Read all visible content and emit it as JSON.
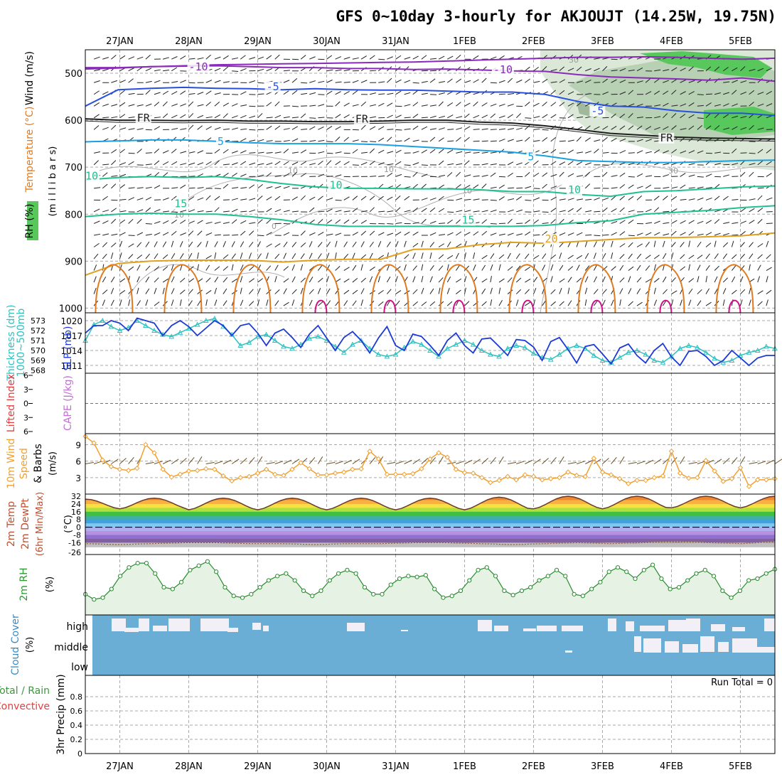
{
  "chart_data": {
    "type": "line",
    "title": "GFS 0~10day 3-hourly for AKJOUJT (14.25W, 19.75N)",
    "dates": [
      "27JAN",
      "28JAN",
      "29JAN",
      "30JAN",
      "31JAN",
      "1FEB",
      "2FEB",
      "3FEB",
      "4FEB",
      "5FEB"
    ],
    "x_hours": [
      0,
      240
    ],
    "colors": {
      "purple": "#8a2ab8",
      "blue": "#2850e0",
      "cyan": "#1aa0e0",
      "teal": "#20c090",
      "orange": "#e0a020",
      "darkorange": "#e07a20",
      "magenta": "#d0108a",
      "rhgreen": "#3ec04a",
      "cloud": "#6aaed6",
      "windorange": "#f0a030",
      "slp": "#1c3ad6",
      "thick": "#30c0c0"
    },
    "panels": {
      "upper": {
        "ylabel_wind": "Wind (m/s)",
        "ylabel_temp": "Temperature (°C)",
        "ylabel_rh": "RH (%)",
        "ylabel_units": "(m i l l i b a r s)",
        "yticks": [
          500,
          600,
          700,
          800,
          900,
          1000
        ],
        "ylim": [
          450,
          1010
        ],
        "contours": [
          {
            "label": "-10",
            "color": "#8a2ab8",
            "levels": [
              488,
              488,
              486,
              484,
              482,
              481,
              480,
              479,
              478,
              477,
              476,
              474,
              472,
              470,
              468,
              466,
              466,
              465,
              466,
              468,
              470,
              468
            ]
          },
          {
            "label": "-10b",
            "color": "#8a2ab8",
            "levels": [
              491,
              489,
              486,
              485,
              484,
              486,
              488,
              488,
              490,
              490,
              492,
              491,
              493,
              495,
              496,
              503,
              508,
              510,
              512,
              515,
              510,
              517
            ]
          },
          {
            "label": "-5",
            "color": "#2850e0",
            "levels": [
              570,
              535,
              532,
              530,
              532,
              533,
              535,
              533,
              535,
              536,
              536,
              538,
              540,
              540,
              545,
              560,
              570,
              572,
              580,
              585,
              585,
              590
            ]
          },
          {
            "label": "FR",
            "color": "#202020",
            "levels": [
              597,
              600,
              600,
              601,
              600,
              602,
              602,
              603,
              603,
              602,
              600,
              600,
              604,
              606,
              612,
              620,
              628,
              632,
              636,
              638,
              639,
              640
            ]
          },
          {
            "label": "5",
            "color": "#1aa0e0",
            "levels": [
              646,
              644,
              642,
              642,
              645,
              648,
              650,
              650,
              650,
              652,
              656,
              660,
              664,
              668,
              676,
              686,
              688,
              690,
              690,
              688,
              686,
              685
            ]
          },
          {
            "label": "10",
            "color": "#20c090",
            "levels": [
              727,
              722,
              720,
              722,
              720,
              726,
              735,
              742,
              745,
              745,
              746,
              746,
              748,
              752,
              752,
              758,
              762,
              752,
              750,
              746,
              742,
              740
            ]
          },
          {
            "label": "15",
            "color": "#20c090",
            "levels": [
              805,
              800,
              798,
              800,
              800,
              805,
              812,
              822,
              826,
              826,
              826,
              826,
              826,
              826,
              824,
              818,
              814,
              800,
              796,
              792,
              786,
              782
            ]
          },
          {
            "label": "20",
            "color": "#e0a020",
            "levels": [
              930,
              905,
              900,
              898,
              898,
              898,
              902,
              898,
              896,
              896,
              875,
              874,
              865,
              860,
              862,
              858,
              854,
              850,
              850,
              848,
              846,
              840
            ]
          }
        ],
        "labels": [
          {
            "text": "-10",
            "color": "#8a2ab8",
            "hour": 36,
            "p": 494
          },
          {
            "text": "-10",
            "color": "#8a2ab8",
            "hour": 142,
            "p": 500
          },
          {
            "text": "-5",
            "color": "#2850e0",
            "hour": 63,
            "p": 536
          },
          {
            "text": "-5",
            "color": "#2850e0",
            "hour": 176,
            "p": 588
          },
          {
            "text": "FR",
            "color": "#202020",
            "hour": 18,
            "p": 603
          },
          {
            "text": "FR",
            "color": "#202020",
            "hour": 94,
            "p": 605
          },
          {
            "text": "FR",
            "color": "#202020",
            "hour": 200,
            "p": 645
          },
          {
            "text": "5",
            "color": "#1aa0e0",
            "hour": 46,
            "p": 653
          },
          {
            "text": "5",
            "color": "#1aa0e0",
            "hour": 154,
            "p": 685
          },
          {
            "text": "10",
            "color": "#20c090",
            "hour": 0,
            "p": 726
          },
          {
            "text": "10",
            "color": "#20c090",
            "hour": 85,
            "p": 746
          },
          {
            "text": "10",
            "color": "#20c090",
            "hour": 168,
            "p": 756
          },
          {
            "text": "15",
            "color": "#20c090",
            "hour": 31,
            "p": 785
          },
          {
            "text": "15",
            "color": "#20c090",
            "hour": 131,
            "p": 820
          },
          {
            "text": "20",
            "color": "#e0a020",
            "hour": 160,
            "p": 860
          }
        ]
      },
      "slp": {
        "ylabel_left": "Thickness (dm)",
        "ylabel_left2": "1000~500mb",
        "ylabel_right": "SLP (mb)",
        "thickness_ticks": [
          568,
          569,
          570,
          571,
          572,
          573
        ],
        "slp_ticks": [
          1011,
          1014,
          1017,
          1020
        ],
        "slp_range": [
          1010,
          1021
        ],
        "thick_range": [
          568,
          573.5
        ],
        "slp": [
          1017.5,
          1019,
          1019,
          1020,
          1019.5,
          1018,
          1020.5,
          1020,
          1019.5,
          1017,
          1019,
          1020,
          1018.8,
          1017,
          1018.5,
          1020,
          1019,
          1017,
          1019,
          1019.4,
          1017.5,
          1015,
          1017.5,
          1018.3,
          1016.6,
          1014.6,
          1017.3,
          1019,
          1016.5,
          1014,
          1016.6,
          1017.8,
          1016,
          1013.5,
          1016.5,
          1018.8,
          1015,
          1014,
          1017.3,
          1016.8,
          1015,
          1013,
          1016,
          1017.5,
          1015,
          1013.5,
          1016.3,
          1016.5,
          1014.8,
          1013,
          1016.2,
          1016,
          1014.7,
          1012,
          1015.8,
          1016.6,
          1014.2,
          1011.5,
          1014.8,
          1015.2,
          1013.3,
          1011.3,
          1014.5,
          1015.3,
          1013,
          1011.5,
          1014,
          1015.4,
          1012.7,
          1011,
          1013.8,
          1014,
          1012.8,
          1011,
          1012,
          1014,
          1012.5,
          1011,
          1012.5,
          1013,
          1013
        ],
        "thickness": [
          571,
          572.6,
          573,
          572.4,
          572,
          572.3,
          573,
          572.5,
          572,
          571.6,
          571.4,
          571.8,
          572.2,
          572.6,
          573,
          573.2,
          572.4,
          571.6,
          570.5,
          570.8,
          571.4,
          571.6,
          571,
          570.4,
          570.2,
          570.6,
          571.2,
          571.4,
          571,
          570.4,
          569.8,
          570.6,
          571,
          570.2,
          569.6,
          569.4,
          569.6,
          570.3,
          570.9,
          570.6,
          570.0,
          569.4,
          570.2,
          570.6,
          571,
          570.6,
          570,
          569.6,
          569.4,
          570.2,
          570.5,
          570.3,
          569.7,
          569.3,
          569.1,
          569.6,
          570.2,
          570.5,
          570.2,
          569.5,
          569.0,
          568.8,
          569.3,
          569.8,
          570.0,
          569.6,
          569.0,
          568.8,
          569.4,
          570.2,
          570.5,
          570.3,
          569.8,
          569.2,
          568.8,
          569.0,
          569.5,
          569.8,
          570,
          570.4,
          570.2
        ]
      },
      "cape": {
        "ylabel_left": "Lifted Index",
        "ylabel_right": "CAPE (J/kg)",
        "yticks": [
          -6,
          -3,
          0,
          3,
          6
        ],
        "li_zero_line": 0
      },
      "wind": {
        "ylabel": "10m Wind",
        "ylabel2": "Speed",
        "ylabel3": "& Barbs",
        "units": "(m/s)",
        "yticks": [
          3,
          6,
          9
        ],
        "ylim": [
          0,
          11
        ],
        "speed": [
          10.5,
          9.3,
          6.2,
          5,
          4.5,
          4.3,
          4.7,
          9,
          7.5,
          4.5,
          3.1,
          3.6,
          4.2,
          4.3,
          4.6,
          4.5,
          3.3,
          2.4,
          3,
          3.2,
          3.8,
          4.5,
          3.6,
          3.4,
          4.5,
          5.7,
          4.6,
          3.5,
          3.5,
          3.8,
          4,
          4.5,
          4.6,
          7.8,
          6.4,
          3.6,
          3.6,
          3.6,
          3.7,
          4.6,
          6.4,
          7.5,
          6.7,
          4.5,
          3.9,
          3.8,
          3.0,
          2.1,
          2.5,
          3.2,
          2.6,
          3.5,
          3.2,
          2.6,
          2.8,
          3,
          4,
          3.4,
          3.2,
          6.5,
          4,
          3.5,
          2.8,
          1.9,
          2.5,
          2.5,
          3,
          3.3,
          7.8,
          3.8,
          2.9,
          3.0,
          6.1,
          4.2,
          2.3,
          2.8,
          4.8,
          1.4,
          2.6,
          2.6,
          2.8
        ]
      },
      "temp2m": {
        "ylabel": "2m Temp",
        "ylabel2": "2m DewPt",
        "ylabel3": "(6hr Min/Max)",
        "units": "(°C)",
        "yticks": [
          32,
          24,
          16,
          8,
          0,
          -8,
          -16,
          -26
        ],
        "maxima": [
          29,
          30,
          30,
          30,
          30,
          30,
          31,
          32,
          32,
          32
        ],
        "minima": [
          19,
          19,
          18,
          18,
          18,
          18,
          18,
          19,
          19,
          20
        ],
        "dewpt": [
          -17,
          -18,
          -17,
          -16,
          -16,
          -17,
          -17,
          -18,
          -17,
          -17,
          -16,
          -16,
          -17,
          -18,
          -17,
          -16,
          -17,
          -16,
          -15,
          -16,
          -17,
          -15
        ]
      },
      "rh2m": {
        "ylabel": "2m RH",
        "units": "(%)",
        "values": [
          24,
          18,
          20,
          30,
          45,
          55,
          60,
          60,
          48,
          32,
          30,
          38,
          52,
          57,
          62,
          50,
          32,
          22,
          20,
          24,
          32,
          40,
          45,
          48,
          40,
          28,
          22,
          28,
          40,
          48,
          52,
          48,
          32,
          24,
          24,
          35,
          42,
          45,
          44,
          46,
          30,
          20,
          22,
          28,
          40,
          52,
          55,
          45,
          28,
          23,
          28,
          32,
          40,
          45,
          52,
          45,
          24,
          22,
          30,
          38,
          50,
          55,
          50,
          42,
          52,
          58,
          42,
          30,
          32,
          40,
          48,
          52,
          45,
          28,
          20,
          28,
          40,
          42,
          48,
          53
        ]
      },
      "cloud": {
        "ylabel": "Cloud Cover",
        "units": "(%)",
        "levels": [
          "high",
          "middle",
          "low"
        ]
      },
      "precip": {
        "ylabel": "3hr Precip (mm)",
        "ylabel_left1": "Total / Rain",
        "ylabel_left2": "Convective",
        "yticks": [
          0,
          0.2,
          0.4,
          0.6,
          0.8
        ],
        "run_total": "Run Total = 0"
      }
    }
  }
}
